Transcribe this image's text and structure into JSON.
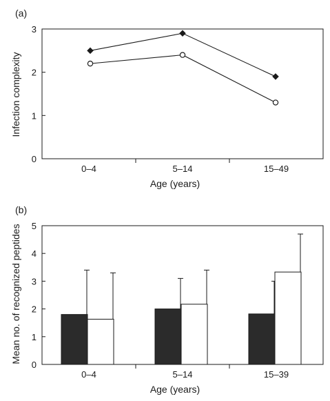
{
  "chart_data": [
    {
      "type": "line",
      "panel_label": "(a)",
      "xlabel": "Age (years)",
      "ylabel": "Infection complexity",
      "categories": [
        "0–4",
        "5–14",
        "15–49"
      ],
      "ylim": [
        0,
        3
      ],
      "yticks": [
        0,
        1,
        2,
        3
      ],
      "grid": false,
      "series": [
        {
          "marker": "filled-diamond",
          "color": "#1a1a1a",
          "values": [
            2.5,
            2.9,
            1.9
          ]
        },
        {
          "marker": "open-circle",
          "color": "#1a1a1a",
          "values": [
            2.2,
            2.4,
            1.3
          ]
        }
      ]
    },
    {
      "type": "bar",
      "panel_label": "(b)",
      "xlabel": "Age (years)",
      "ylabel": "Mean no. of recognized peptides",
      "categories": [
        "0–4",
        "5–14",
        "15–39"
      ],
      "ylim": [
        0,
        5
      ],
      "yticks": [
        0,
        1,
        2,
        3,
        4,
        5
      ],
      "grid": false,
      "series": [
        {
          "fill": "#2b2b2b",
          "values": [
            1.8,
            2.0,
            1.82
          ],
          "error_upper": [
            3.4,
            3.1,
            3.0
          ]
        },
        {
          "fill": "#ffffff",
          "values": [
            1.63,
            2.17,
            3.33
          ],
          "error_upper": [
            3.3,
            3.4,
            4.7
          ]
        }
      ]
    }
  ]
}
